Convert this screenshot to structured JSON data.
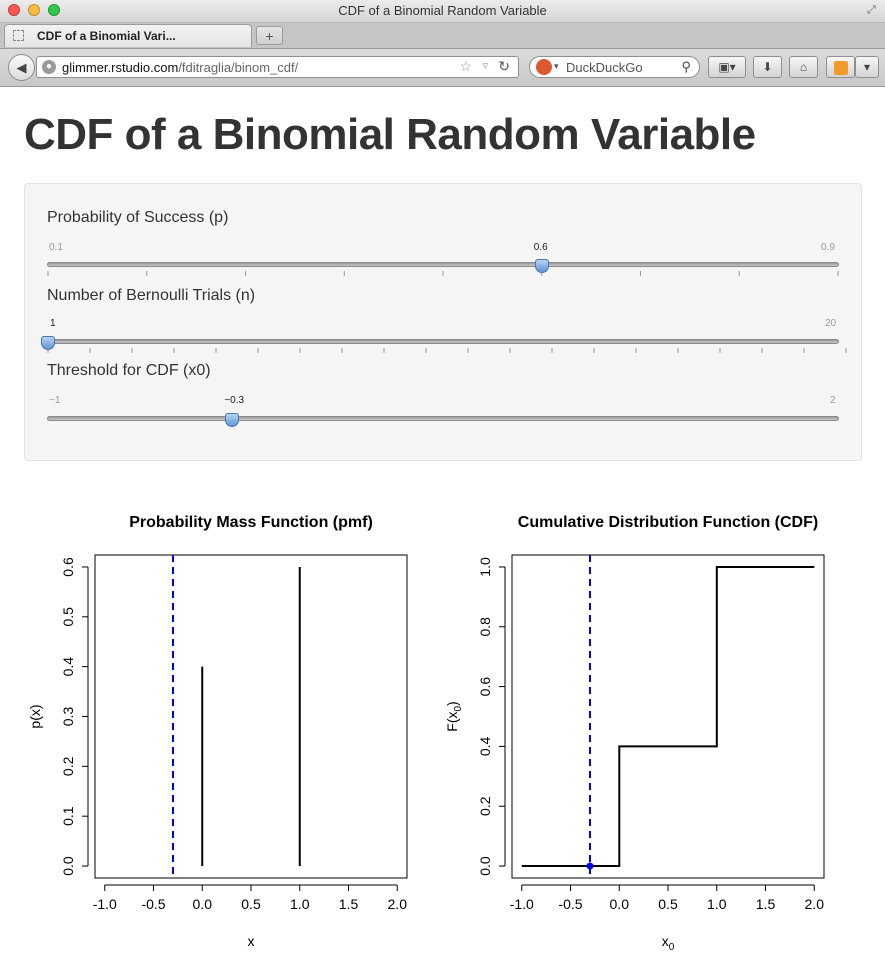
{
  "window": {
    "title": "CDF of a Binomial Random Variable"
  },
  "tab": {
    "label": "CDF of a Binomial Vari...",
    "new_tab": "+"
  },
  "toolbar": {
    "url_host": "glimmer.rstudio.com",
    "url_path": "/fditraglia/binom_cdf/",
    "search_engine": "DuckDuckGo"
  },
  "page": {
    "title": "CDF of a Binomial Random Variable"
  },
  "sliders": [
    {
      "label": "Probability of Success (p)",
      "min": 0.1,
      "max": 0.9,
      "value": 0.6,
      "min_label": "0.1",
      "max_label": "0.9",
      "value_label": "0.6",
      "ticks": 9
    },
    {
      "label": "Number of Bernoulli Trials (n)",
      "min": 1,
      "max": 20,
      "value": 1,
      "min_label": "1",
      "max_label": "20",
      "value_label": "",
      "ticks": 20
    },
    {
      "label": "Threshold for CDF (x0)",
      "min": -1,
      "max": 2,
      "value": -0.3,
      "min_label": "−1",
      "max_label": "2",
      "value_label": "−0.3",
      "ticks": 0
    }
  ],
  "chart_data": [
    {
      "type": "bar",
      "title": "Probability Mass Function (pmf)",
      "xlabel": "x",
      "ylabel": "p(x)",
      "xlim": [
        -1.1,
        2.1
      ],
      "ylim": [
        -0.024,
        0.624
      ],
      "x_ticks": [
        -1.0,
        -0.5,
        0.0,
        0.5,
        1.0,
        1.5,
        2.0
      ],
      "x_tick_labels": [
        "-1.0",
        "-0.5",
        "0.0",
        "0.5",
        "1.0",
        "1.5",
        "2.0"
      ],
      "y_ticks": [
        0.0,
        0.1,
        0.2,
        0.3,
        0.4,
        0.5,
        0.6
      ],
      "y_tick_labels": [
        "0.0",
        "0.1",
        "0.2",
        "0.3",
        "0.4",
        "0.5",
        "0.6"
      ],
      "x": [
        0,
        1
      ],
      "values": [
        0.4,
        0.6
      ],
      "threshold": -0.3,
      "threshold_color": "#0000ee"
    },
    {
      "type": "line",
      "title": "Cumulative Distribution Function (CDF)",
      "xlabel": "x0",
      "ylabel": "F(x0)",
      "xlim": [
        -1.1,
        2.1
      ],
      "ylim": [
        -0.04,
        1.04
      ],
      "x_ticks": [
        -1.0,
        -0.5,
        0.0,
        0.5,
        1.0,
        1.5,
        2.0
      ],
      "x_tick_labels": [
        "-1.0",
        "-0.5",
        "0.0",
        "0.5",
        "1.0",
        "1.5",
        "2.0"
      ],
      "y_ticks": [
        0.0,
        0.2,
        0.4,
        0.6,
        0.8,
        1.0
      ],
      "y_tick_labels": [
        "0.0",
        "0.2",
        "0.4",
        "0.6",
        "0.8",
        "1.0"
      ],
      "step_x": [
        -1,
        0,
        0,
        1,
        1,
        2
      ],
      "step_y": [
        0,
        0,
        0.4,
        0.4,
        1,
        1
      ],
      "threshold": -0.3,
      "threshold_value": 0,
      "threshold_color": "#0000ee"
    }
  ]
}
